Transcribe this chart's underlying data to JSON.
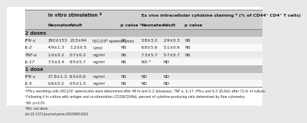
{
  "header1": "In vitro stimulation ª",
  "header2": "Ex vivo intracellular cytokine staining ᵇ (% of CD44⁺ CD4⁺ T cells)",
  "col_headers": [
    "Neonates",
    "Adult",
    "p value ᶜ",
    "Neonates",
    "Adult",
    "p value"
  ],
  "section1": "2 doses",
  "section2": "1 dose",
  "rows": [
    [
      "IFN-γ",
      "292±153",
      "213±94",
      "ISC/10⁶ splenocytes",
      "NS",
      "3.8±3.2",
      "2.9±0.3",
      "NS"
    ],
    [
      "IL-2",
      "4.9±1.3",
      "1.2±0.5",
      "U/ml",
      "NS",
      "6.8±5.6",
      "5.1±0.6",
      "NS"
    ],
    [
      "TNF-α",
      "1.0±0.2",
      "0.7±0.2",
      "ng/ml",
      "NS",
      "7.3±5.7",
      "5.7±0.7",
      "NS"
    ],
    [
      "IL-17",
      "7.5±2.4",
      "9.5±5.7",
      "ng/ml",
      "NS",
      "ND ᵈ",
      "ND",
      ""
    ],
    [
      "IFN-γ",
      "17.8±1.3",
      "6.5±0.6",
      "ng/ml",
      "NS",
      "ND",
      "ND",
      ""
    ],
    [
      "IL-5",
      "0.6±0.2",
      "0.5±1.0",
      "ng/ml",
      "NS",
      "ND",
      "ND",
      ""
    ]
  ],
  "footnotes": [
    "ªIFN-γ secreting cells (ISC)/10⁶ splenocytes were determined after 48 hr and IL-2 (bioassay), TNF-α, IL-17, IFN-γ and IL-5 (ELISA) after 72 hr of culture.",
    "ᵇFollowing 6 hr culture with antigen and co-stimulation (CD28/CD49d), percent of cytokine-producing cells determined by flow cytometry.",
    "ᶜNS: p>0.05.",
    "ᵈND: not done.",
    "doi:10.1371/journal.pone.0003683.t001"
  ],
  "bg_white": "#ffffff",
  "bg_gray_header": "#d0d0d0",
  "bg_gray_section": "#bebebe",
  "bg_row_light": "#ebebeb",
  "bg_row_white": "#f8f8f8",
  "line_color": "#888888",
  "text_dark": "#1a1a1a",
  "outer_bg": "#e8e8e8"
}
